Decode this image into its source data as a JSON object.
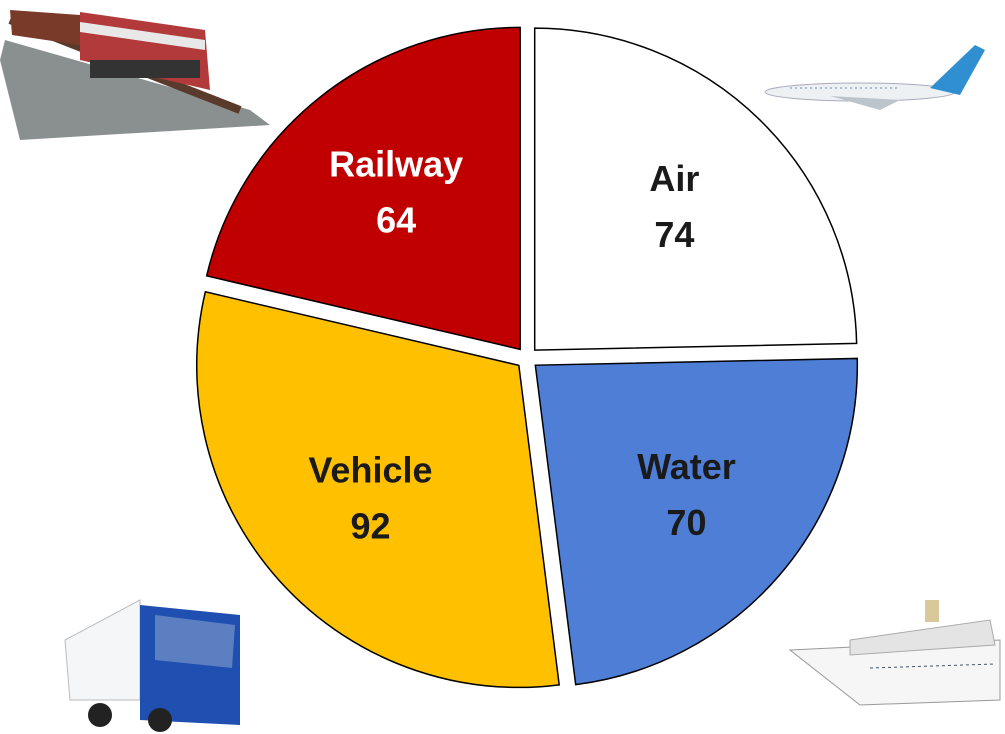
{
  "chart_data": {
    "type": "pie",
    "categories": [
      "Air",
      "Water",
      "Vehicle",
      "Railway"
    ],
    "values": [
      74,
      70,
      92,
      64
    ],
    "colors": [
      "#ffffff",
      "#4e7ed6",
      "#ffc000",
      "#c00000"
    ]
  }
}
